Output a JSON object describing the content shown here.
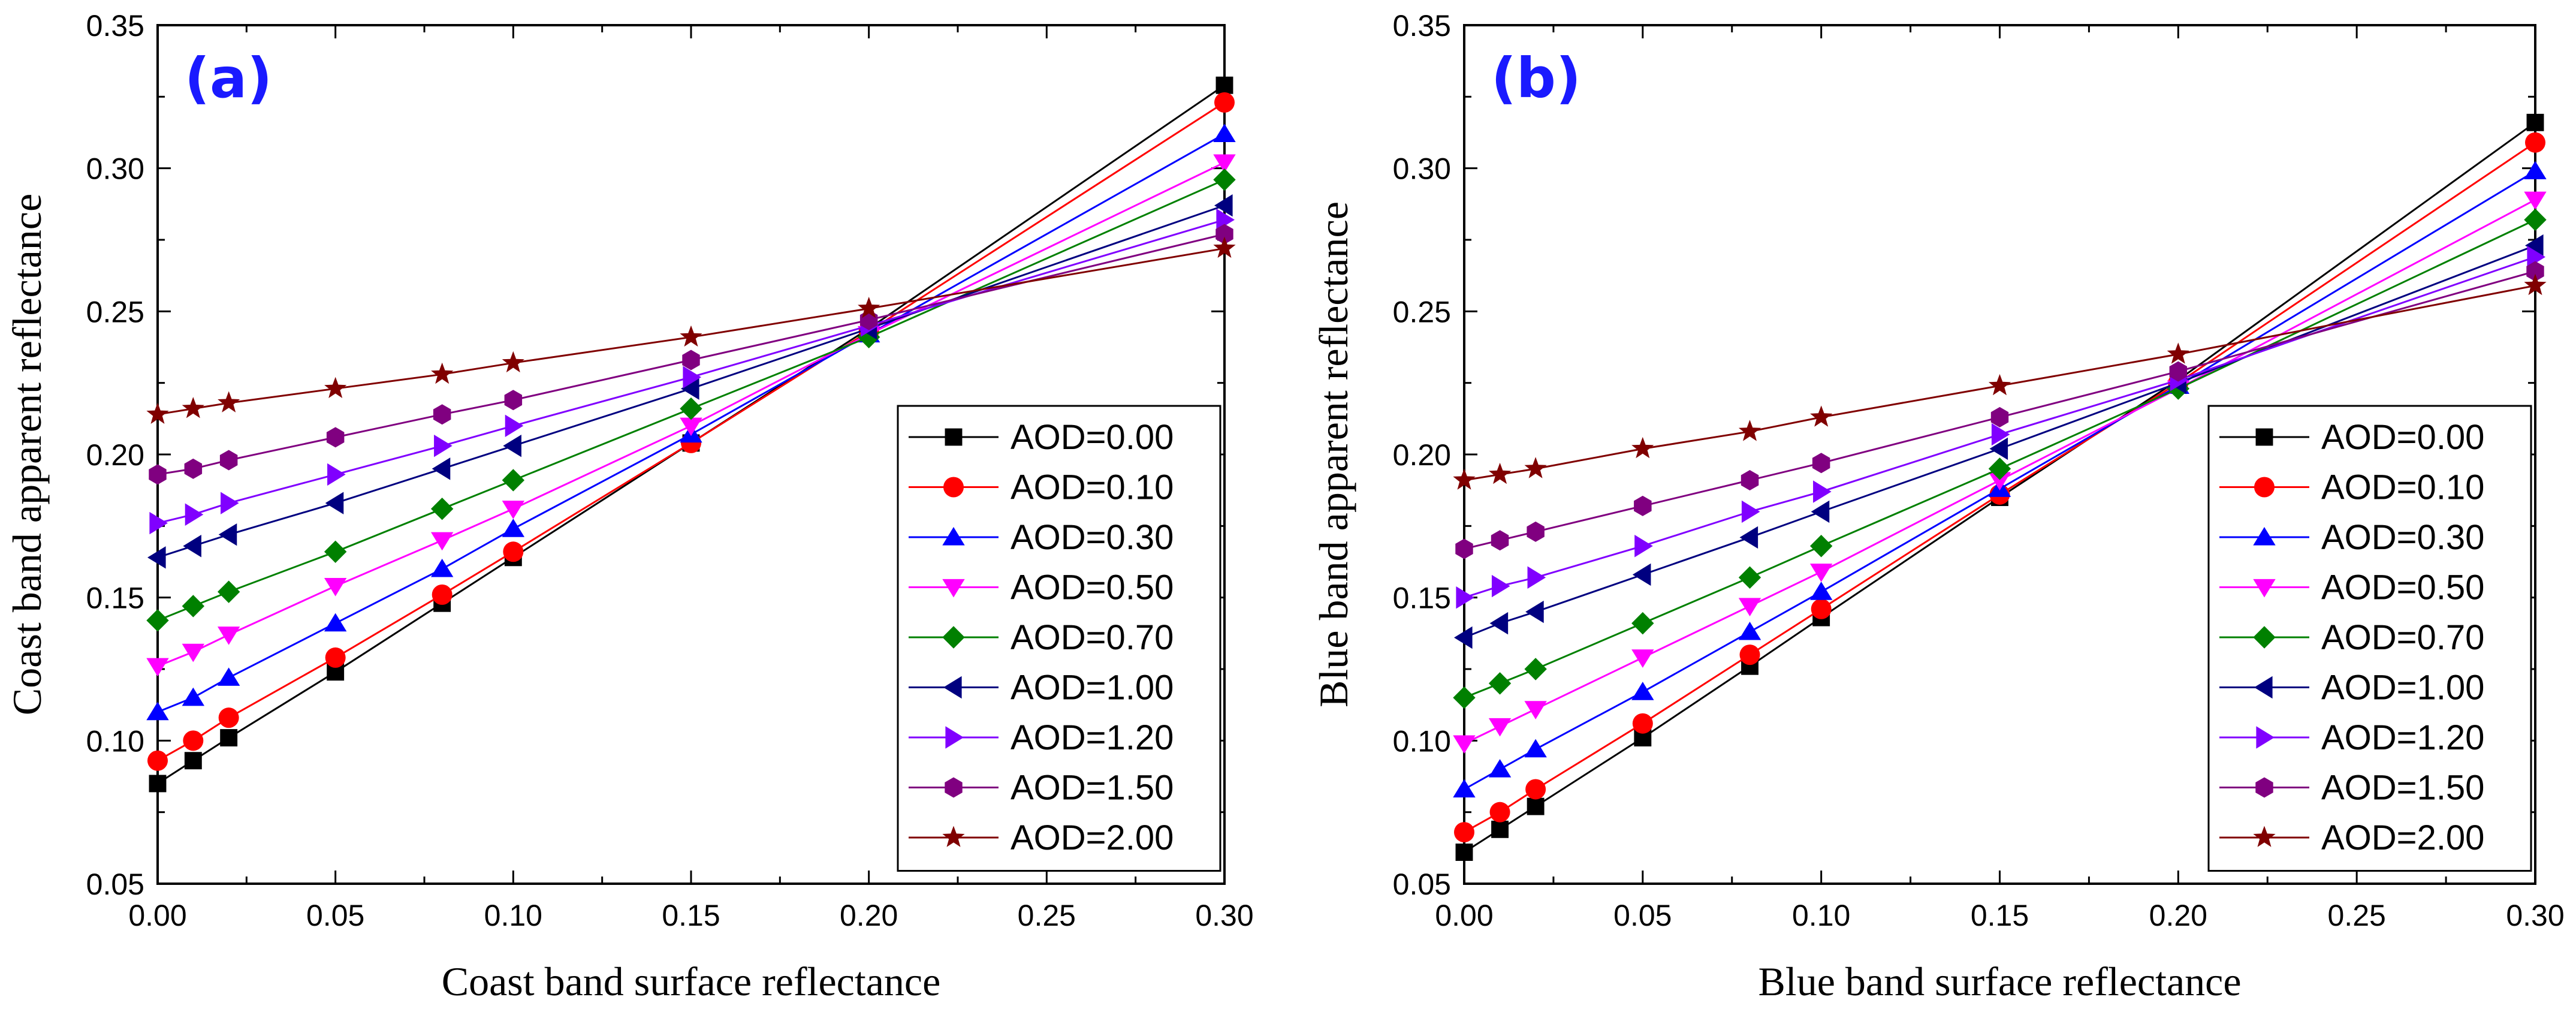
{
  "chart_data": [
    {
      "type": "line",
      "panel_label": "(a)",
      "xlabel": "Coast band surface reflectance",
      "ylabel": "Coast band apparent reflectance",
      "xlim": [
        0.0,
        0.3
      ],
      "ylim": [
        0.05,
        0.35
      ],
      "xticks": [
        "0.00",
        "0.05",
        "0.10",
        "0.15",
        "0.20",
        "0.25",
        "0.30"
      ],
      "yticks": [
        "0.05",
        "0.10",
        "0.15",
        "0.20",
        "0.25",
        "0.30",
        "0.35"
      ],
      "legend_position": "lower-right",
      "x": [
        0.0,
        0.01,
        0.02,
        0.05,
        0.08,
        0.1,
        0.15,
        0.2,
        0.3
      ],
      "series": [
        {
          "name": "AOD=0.00",
          "color": "#000000",
          "marker": "square",
          "values": [
            0.085,
            0.093,
            0.101,
            0.124,
            0.148,
            0.164,
            0.204,
            0.244,
            0.329
          ]
        },
        {
          "name": "AOD=0.10",
          "color": "#ff0000",
          "marker": "circle",
          "values": [
            0.093,
            0.1,
            0.108,
            0.129,
            0.151,
            0.166,
            0.204,
            0.243,
            0.323
          ]
        },
        {
          "name": "AOD=0.30",
          "color": "#0000ff",
          "marker": "triangle-up",
          "values": [
            0.11,
            0.115,
            0.122,
            0.141,
            0.16,
            0.174,
            0.207,
            0.242,
            0.312
          ]
        },
        {
          "name": "AOD=0.50",
          "color": "#ff00ff",
          "marker": "triangle-down",
          "values": [
            0.126,
            0.131,
            0.137,
            0.154,
            0.17,
            0.181,
            0.21,
            0.242,
            0.302
          ]
        },
        {
          "name": "AOD=0.70",
          "color": "#008000",
          "marker": "diamond",
          "values": [
            0.142,
            0.147,
            0.152,
            0.166,
            0.181,
            0.191,
            0.216,
            0.241,
            0.296
          ]
        },
        {
          "name": "AOD=1.00",
          "color": "#000080",
          "marker": "triangle-left",
          "values": [
            0.164,
            0.168,
            0.172,
            0.183,
            0.195,
            0.203,
            0.223,
            0.244,
            0.287
          ]
        },
        {
          "name": "AOD=1.20",
          "color": "#8000ff",
          "marker": "triangle-right",
          "values": [
            0.176,
            0.179,
            0.183,
            0.193,
            0.203,
            0.21,
            0.227,
            0.245,
            0.282
          ]
        },
        {
          "name": "AOD=1.50",
          "color": "#800080",
          "marker": "hexagon",
          "values": [
            0.193,
            0.195,
            0.198,
            0.206,
            0.214,
            0.219,
            0.233,
            0.247,
            0.277
          ]
        },
        {
          "name": "AOD=2.00",
          "color": "#800000",
          "marker": "star",
          "values": [
            0.214,
            0.216,
            0.218,
            0.223,
            0.228,
            0.232,
            0.241,
            0.251,
            0.272
          ]
        }
      ]
    },
    {
      "type": "line",
      "panel_label": "(b)",
      "xlabel": "Blue band surface reflectance",
      "ylabel": "Blue band apparent reflectance",
      "xlim": [
        0.0,
        0.3
      ],
      "ylim": [
        0.05,
        0.35
      ],
      "xticks": [
        "0.00",
        "0.05",
        "0.10",
        "0.15",
        "0.20",
        "0.25",
        "0.30"
      ],
      "yticks": [
        "0.05",
        "0.10",
        "0.15",
        "0.20",
        "0.25",
        "0.30",
        "0.35"
      ],
      "legend_position": "lower-right",
      "x": [
        0.0,
        0.01,
        0.02,
        0.05,
        0.08,
        0.1,
        0.15,
        0.2,
        0.3
      ],
      "series": [
        {
          "name": "AOD=0.00",
          "color": "#000000",
          "marker": "square",
          "values": [
            0.061,
            0.069,
            0.077,
            0.101,
            0.126,
            0.143,
            0.185,
            0.226,
            0.316
          ]
        },
        {
          "name": "AOD=0.10",
          "color": "#ff0000",
          "marker": "circle",
          "values": [
            0.068,
            0.075,
            0.083,
            0.106,
            0.13,
            0.146,
            0.186,
            0.225,
            0.309
          ]
        },
        {
          "name": "AOD=0.30",
          "color": "#0000ff",
          "marker": "triangle-up",
          "values": [
            0.083,
            0.09,
            0.097,
            0.117,
            0.138,
            0.152,
            0.188,
            0.224,
            0.299
          ]
        },
        {
          "name": "AOD=0.50",
          "color": "#ff00ff",
          "marker": "triangle-down",
          "values": [
            0.099,
            0.105,
            0.111,
            0.129,
            0.147,
            0.159,
            0.191,
            0.223,
            0.289
          ]
        },
        {
          "name": "AOD=0.70",
          "color": "#008000",
          "marker": "diamond",
          "values": [
            0.115,
            0.12,
            0.125,
            0.141,
            0.157,
            0.168,
            0.195,
            0.223,
            0.282
          ]
        },
        {
          "name": "AOD=1.00",
          "color": "#000080",
          "marker": "triangle-left",
          "values": [
            0.136,
            0.141,
            0.145,
            0.158,
            0.171,
            0.18,
            0.202,
            0.225,
            0.273
          ]
        },
        {
          "name": "AOD=1.20",
          "color": "#8000ff",
          "marker": "triangle-right",
          "values": [
            0.15,
            0.154,
            0.157,
            0.168,
            0.18,
            0.187,
            0.207,
            0.226,
            0.269
          ]
        },
        {
          "name": "AOD=1.50",
          "color": "#800080",
          "marker": "hexagon",
          "values": [
            0.167,
            0.17,
            0.173,
            0.182,
            0.191,
            0.197,
            0.213,
            0.229,
            0.264
          ]
        },
        {
          "name": "AOD=2.00",
          "color": "#800000",
          "marker": "star",
          "values": [
            0.191,
            0.193,
            0.195,
            0.202,
            0.208,
            0.213,
            0.224,
            0.235,
            0.259
          ]
        }
      ]
    }
  ]
}
